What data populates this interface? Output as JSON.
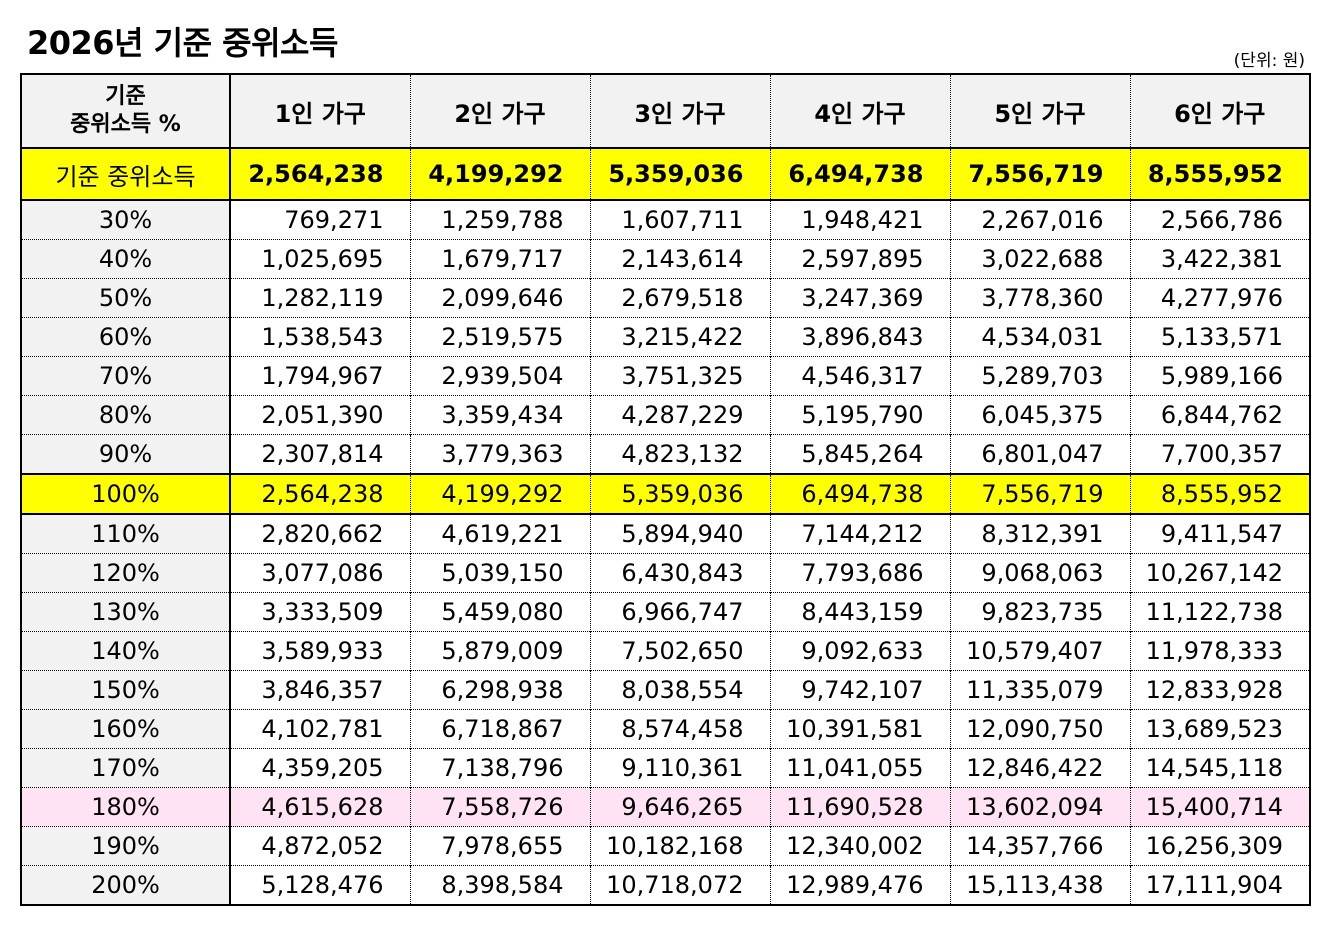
{
  "title": "2026년 기준 중위소득",
  "unit": "(단위: 원)",
  "colors": {
    "highlight": "#ffff00",
    "pink": "#ffe3f5",
    "header_bg": "#f2f2f2"
  },
  "table": {
    "corner_line1": "기준",
    "corner_line2": "중위소득 %",
    "headers": [
      "1인 가구",
      "2인 가구",
      "3인 가구",
      "4인 가구",
      "5인 가구",
      "6인 가구"
    ],
    "rows": [
      {
        "label": "기준 중위소득",
        "values": [
          "2,564,238",
          "4,199,292",
          "5,359,036",
          "6,494,738",
          "7,556,719",
          "8,555,952"
        ]
      },
      {
        "label": "30%",
        "values": [
          "769,271",
          "1,259,788",
          "1,607,711",
          "1,948,421",
          "2,267,016",
          "2,566,786"
        ]
      },
      {
        "label": "40%",
        "values": [
          "1,025,695",
          "1,679,717",
          "2,143,614",
          "2,597,895",
          "3,022,688",
          "3,422,381"
        ]
      },
      {
        "label": "50%",
        "values": [
          "1,282,119",
          "2,099,646",
          "2,679,518",
          "3,247,369",
          "3,778,360",
          "4,277,976"
        ]
      },
      {
        "label": "60%",
        "values": [
          "1,538,543",
          "2,519,575",
          "3,215,422",
          "3,896,843",
          "4,534,031",
          "5,133,571"
        ]
      },
      {
        "label": "70%",
        "values": [
          "1,794,967",
          "2,939,504",
          "3,751,325",
          "4,546,317",
          "5,289,703",
          "5,989,166"
        ]
      },
      {
        "label": "80%",
        "values": [
          "2,051,390",
          "3,359,434",
          "4,287,229",
          "5,195,790",
          "6,045,375",
          "6,844,762"
        ]
      },
      {
        "label": "90%",
        "values": [
          "2,307,814",
          "3,779,363",
          "4,823,132",
          "5,845,264",
          "6,801,047",
          "7,700,357"
        ]
      },
      {
        "label": "100%",
        "values": [
          "2,564,238",
          "4,199,292",
          "5,359,036",
          "6,494,738",
          "7,556,719",
          "8,555,952"
        ]
      },
      {
        "label": "110%",
        "values": [
          "2,820,662",
          "4,619,221",
          "5,894,940",
          "7,144,212",
          "8,312,391",
          "9,411,547"
        ]
      },
      {
        "label": "120%",
        "values": [
          "3,077,086",
          "5,039,150",
          "6,430,843",
          "7,793,686",
          "9,068,063",
          "10,267,142"
        ]
      },
      {
        "label": "130%",
        "values": [
          "3,333,509",
          "5,459,080",
          "6,966,747",
          "8,443,159",
          "9,823,735",
          "11,122,738"
        ]
      },
      {
        "label": "140%",
        "values": [
          "3,589,933",
          "5,879,009",
          "7,502,650",
          "9,092,633",
          "10,579,407",
          "11,978,333"
        ]
      },
      {
        "label": "150%",
        "values": [
          "3,846,357",
          "6,298,938",
          "8,038,554",
          "9,742,107",
          "11,335,079",
          "12,833,928"
        ]
      },
      {
        "label": "160%",
        "values": [
          "4,102,781",
          "6,718,867",
          "8,574,458",
          "10,391,581",
          "12,090,750",
          "13,689,523"
        ]
      },
      {
        "label": "170%",
        "values": [
          "4,359,205",
          "7,138,796",
          "9,110,361",
          "11,041,055",
          "12,846,422",
          "14,545,118"
        ]
      },
      {
        "label": "180%",
        "values": [
          "4,615,628",
          "7,558,726",
          "9,646,265",
          "11,690,528",
          "13,602,094",
          "15,400,714"
        ]
      },
      {
        "label": "190%",
        "values": [
          "4,872,052",
          "7,978,655",
          "10,182,168",
          "12,340,002",
          "14,357,766",
          "16,256,309"
        ]
      },
      {
        "label": "200%",
        "values": [
          "5,128,476",
          "8,398,584",
          "10,718,072",
          "12,989,476",
          "15,113,438",
          "17,111,904"
        ]
      }
    ]
  }
}
